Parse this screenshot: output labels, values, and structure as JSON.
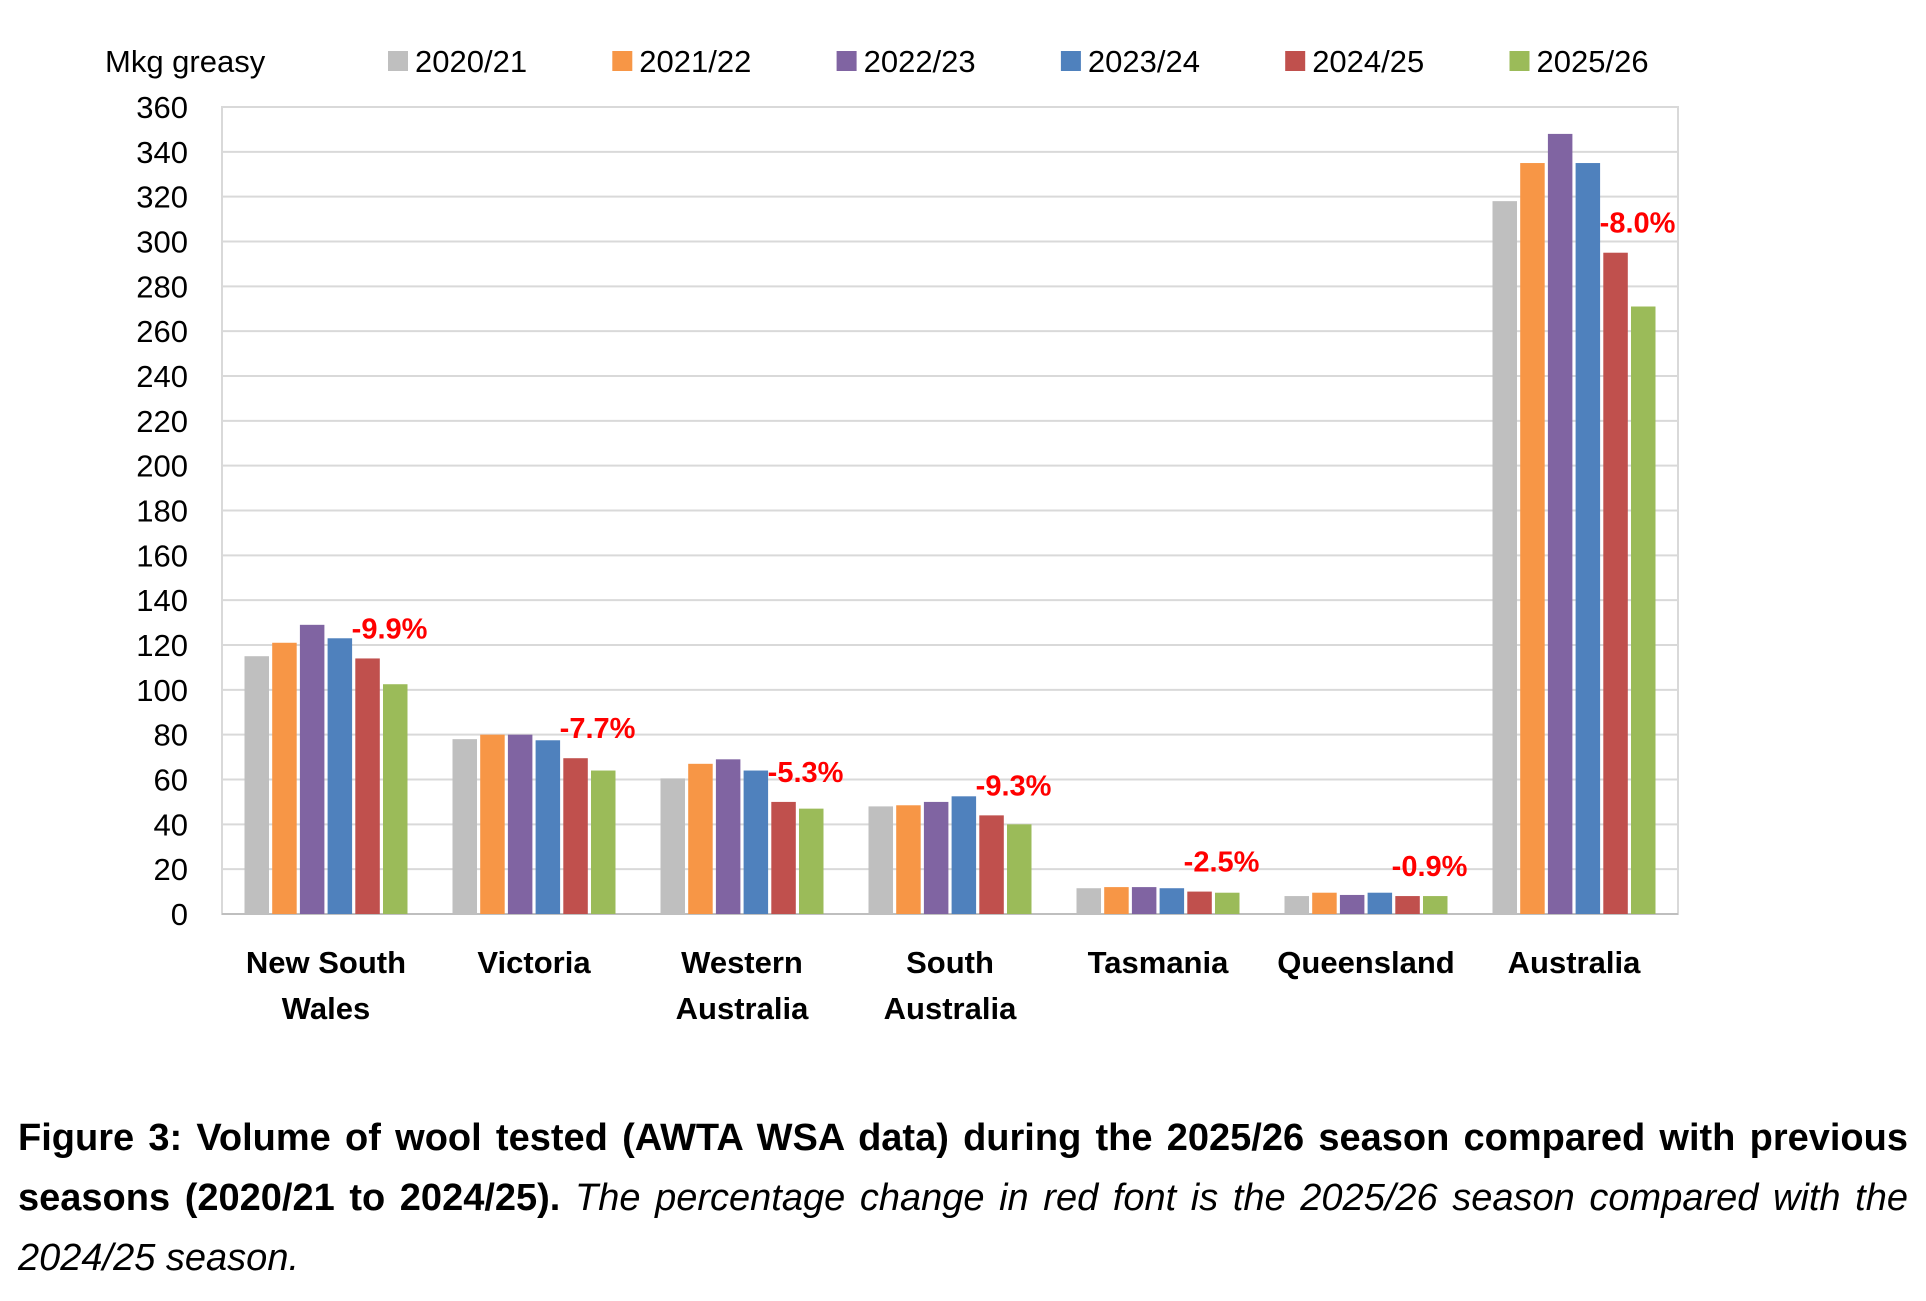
{
  "chart_data": {
    "type": "bar",
    "ylabel": "Mkg greasy",
    "ylim": [
      0,
      360
    ],
    "ytick_step": 20,
    "grid": true,
    "legend_position": "top",
    "categories": [
      [
        "New South",
        "Wales"
      ],
      [
        "Victoria"
      ],
      [
        "Western",
        "Australia"
      ],
      [
        "South",
        "Australia"
      ],
      [
        "Tasmania"
      ],
      [
        "Queensland"
      ],
      [
        "Australia"
      ]
    ],
    "series": [
      {
        "name": "2020/21",
        "color": "#bfbfbf",
        "values": [
          115,
          78,
          60.5,
          48,
          11.5,
          8,
          318
        ]
      },
      {
        "name": "2021/22",
        "color": "#f79646",
        "values": [
          121,
          80,
          67,
          48.5,
          12,
          9.5,
          335
        ]
      },
      {
        "name": "2022/23",
        "color": "#8064a2",
        "values": [
          129,
          80,
          69,
          50,
          12,
          8.5,
          348
        ]
      },
      {
        "name": "2023/24",
        "color": "#4f81bd",
        "values": [
          123,
          77.5,
          64,
          52.5,
          11.5,
          9.5,
          335
        ]
      },
      {
        "name": "2024/25",
        "color": "#c0504d",
        "values": [
          114,
          69.5,
          50,
          44,
          10,
          8,
          295
        ]
      },
      {
        "name": "2025/26",
        "color": "#9bbb59",
        "values": [
          102.5,
          64,
          47,
          40,
          9.5,
          8,
          271
        ]
      }
    ],
    "annotations": [
      "-9.9%",
      "-7.7%",
      "-5.3%",
      "-9.3%",
      "-2.5%",
      "-0.9%",
      "-8.0%"
    ],
    "annotation_color": "#ff0000"
  },
  "caption": {
    "bold": "Figure 3: Volume of wool tested (AWTA WSA data) during the 2025/26 season compared with previous seasons (2020/21 to 2024/25).",
    "italic": "The percentage change in red font is the 2025/26 season compared with the 2024/25 season."
  }
}
